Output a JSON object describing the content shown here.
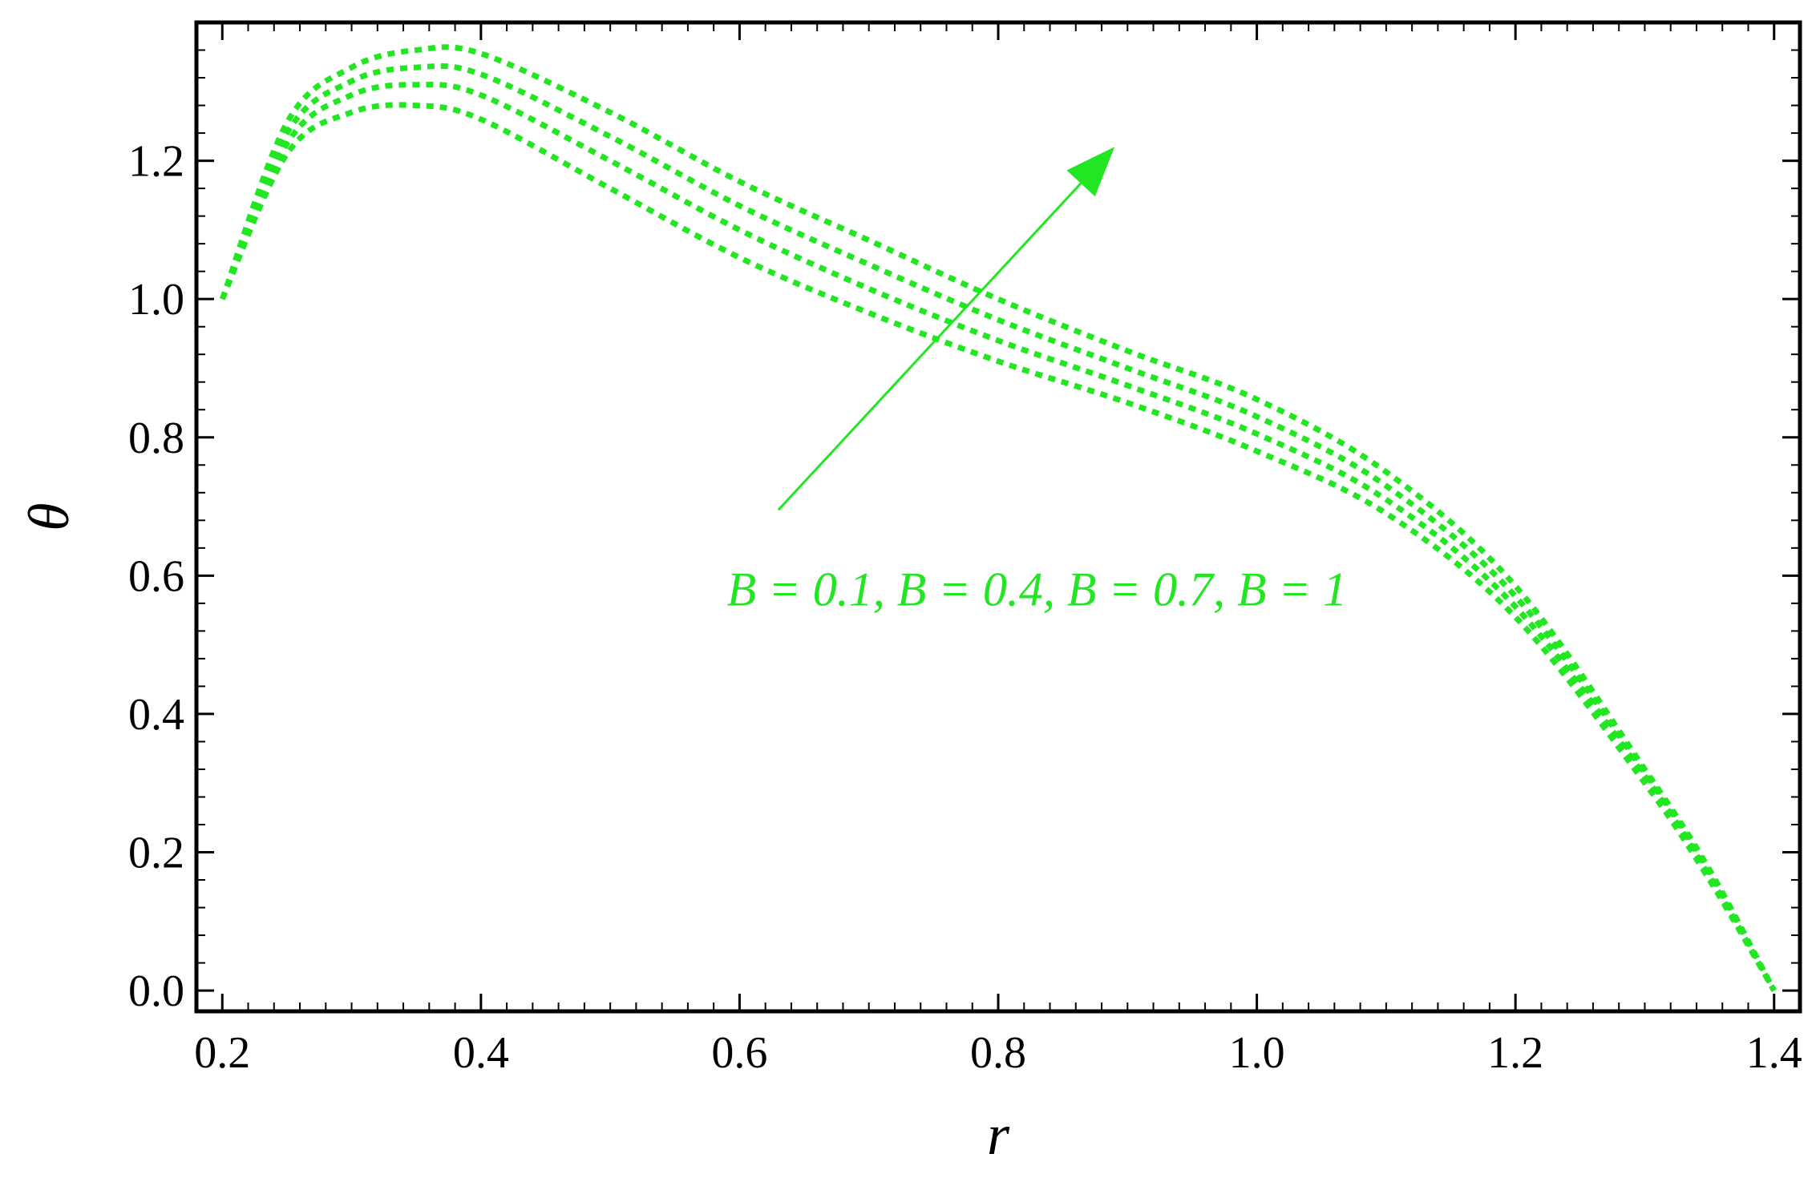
{
  "chart_data": {
    "type": "line",
    "title": "",
    "xlabel": "r",
    "ylabel": "θ",
    "xlim": [
      0.18,
      1.42
    ],
    "ylim": [
      -0.03,
      1.4
    ],
    "x_ticks": [
      "0.2",
      "0.4",
      "0.6",
      "0.8",
      "1.0",
      "1.2",
      "1.4"
    ],
    "x_tick_values": [
      0.2,
      0.4,
      0.6,
      0.8,
      1.0,
      1.2,
      1.4
    ],
    "y_ticks": [
      "0.0",
      "0.2",
      "0.4",
      "0.6",
      "0.8",
      "1.0",
      "1.2"
    ],
    "y_tick_values": [
      0.0,
      0.2,
      0.4,
      0.6,
      0.8,
      1.0,
      1.2
    ],
    "grid": false,
    "line_color": "#22e622",
    "line_style": "dotted",
    "series": [
      {
        "x": [
          0.2,
          0.25,
          0.3,
          0.35,
          0.4,
          0.5,
          0.6,
          0.7,
          0.8,
          0.9,
          1.0,
          1.1,
          1.2,
          1.3,
          1.35,
          1.4
        ],
        "y": [
          1.0,
          1.21,
          1.27,
          1.28,
          1.26,
          1.16,
          1.06,
          0.98,
          0.91,
          0.85,
          0.78,
          0.69,
          0.54,
          0.3,
          0.16,
          0.0
        ]
      },
      {
        "x": [
          0.2,
          0.25,
          0.3,
          0.35,
          0.4,
          0.5,
          0.6,
          0.7,
          0.8,
          0.9,
          1.0,
          1.1,
          1.2,
          1.3,
          1.35,
          1.4
        ],
        "y": [
          1.0,
          1.225,
          1.295,
          1.31,
          1.295,
          1.2,
          1.1,
          1.015,
          0.94,
          0.875,
          0.805,
          0.71,
          0.555,
          0.31,
          0.165,
          0.0
        ]
      },
      {
        "x": [
          0.2,
          0.25,
          0.3,
          0.35,
          0.4,
          0.5,
          0.6,
          0.7,
          0.8,
          0.9,
          1.0,
          1.1,
          1.2,
          1.3,
          1.35,
          1.4
        ],
        "y": [
          1.0,
          1.24,
          1.315,
          1.335,
          1.325,
          1.235,
          1.135,
          1.05,
          0.97,
          0.9,
          0.83,
          0.73,
          0.57,
          0.315,
          0.17,
          0.0
        ]
      },
      {
        "x": [
          0.2,
          0.25,
          0.3,
          0.35,
          0.4,
          0.5,
          0.6,
          0.7,
          0.8,
          0.9,
          1.0,
          1.1,
          1.2,
          1.3,
          1.35,
          1.4
        ],
        "y": [
          1.0,
          1.255,
          1.335,
          1.36,
          1.355,
          1.27,
          1.17,
          1.085,
          1.0,
          0.925,
          0.855,
          0.75,
          0.585,
          0.32,
          0.175,
          0.0
        ]
      }
    ],
    "annotation": {
      "text": "B = 0.1, B = 0.4, B = 0.7, B = 1",
      "text_x": 0.83,
      "text_y": 0.58,
      "arrow_from": [
        0.63,
        0.695
      ],
      "arrow_to": [
        0.89,
        1.22
      ]
    }
  }
}
